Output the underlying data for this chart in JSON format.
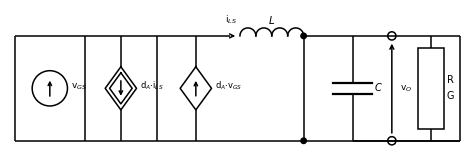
{
  "bg_color": "#ffffff",
  "line_color": "#000000",
  "line_width": 1.1,
  "fig_width": 4.74,
  "fig_height": 1.6,
  "dpi": 100,
  "labels": {
    "vGS": "v$_{GS}$",
    "dA_iLS": "d$_A$$\\cdot$i$_{LS}$",
    "dA_vGS": "d$_A$$\\cdot$v$_{GS}$",
    "iLS": "i$_{LS}$",
    "L": "L",
    "C": "C",
    "vO": "v$_O$",
    "R": "R",
    "G": "G"
  }
}
